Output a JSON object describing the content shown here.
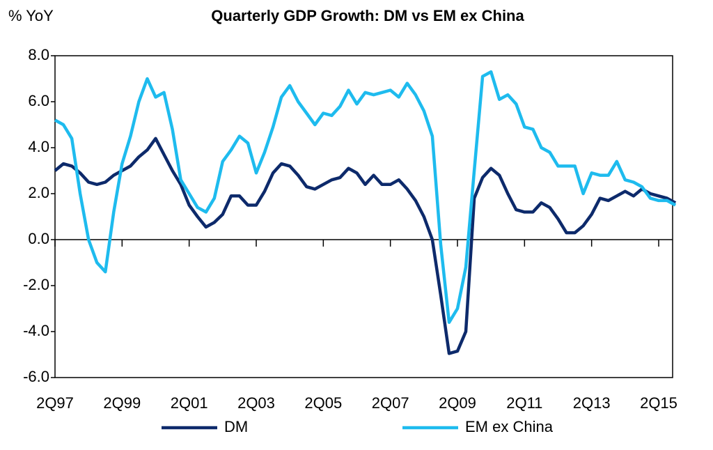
{
  "chart_data": {
    "type": "line",
    "title": "Quarterly GDP Growth: DM vs EM ex China",
    "y_label": "% YoY",
    "categories": [
      "2Q97",
      null,
      null,
      null,
      null,
      null,
      null,
      null,
      "2Q99",
      null,
      null,
      null,
      null,
      null,
      null,
      null,
      "2Q01",
      null,
      null,
      null,
      null,
      null,
      null,
      null,
      "2Q03",
      null,
      null,
      null,
      null,
      null,
      null,
      null,
      "2Q05",
      null,
      null,
      null,
      null,
      null,
      null,
      null,
      "2Q07",
      null,
      null,
      null,
      null,
      null,
      null,
      null,
      "2Q09",
      null,
      null,
      null,
      null,
      null,
      null,
      null,
      "2Q11",
      null,
      null,
      null,
      null,
      null,
      null,
      null,
      "2Q13",
      null,
      null,
      null,
      null,
      null,
      null,
      null,
      "2Q15",
      null,
      null
    ],
    "series": [
      {
        "name": "DM",
        "color": "#0d2a6b",
        "values": [
          3.0,
          3.3,
          3.2,
          2.9,
          2.5,
          2.4,
          2.5,
          2.8,
          3.0,
          3.2,
          3.6,
          3.9,
          4.4,
          3.7,
          3.0,
          2.4,
          1.5,
          1.0,
          0.55,
          0.75,
          1.1,
          1.9,
          1.9,
          1.5,
          1.5,
          2.1,
          2.9,
          3.3,
          3.2,
          2.8,
          2.3,
          2.2,
          2.4,
          2.6,
          2.7,
          3.1,
          2.9,
          2.4,
          2.8,
          2.4,
          2.4,
          2.6,
          2.2,
          1.7,
          1.0,
          0.0,
          -2.4,
          -4.95,
          -4.85,
          -4.0,
          1.8,
          2.7,
          3.1,
          2.8,
          2.0,
          1.3,
          1.2,
          1.2,
          1.6,
          1.4,
          0.9,
          0.3,
          0.3,
          0.6,
          1.1,
          1.8,
          1.7,
          1.9,
          2.1,
          1.9,
          2.2,
          2.0,
          1.9,
          1.8,
          1.6
        ]
      },
      {
        "name": "EM ex China",
        "color": "#1ebbee",
        "values": [
          5.2,
          5.0,
          4.4,
          2.0,
          0.0,
          -1.0,
          -1.4,
          1.2,
          3.3,
          4.5,
          6.0,
          7.0,
          6.2,
          6.4,
          4.8,
          2.6,
          2.0,
          1.4,
          1.2,
          1.8,
          3.4,
          3.9,
          4.5,
          4.2,
          2.9,
          3.8,
          4.9,
          6.2,
          6.7,
          6.0,
          5.5,
          5.0,
          5.5,
          5.4,
          5.8,
          6.5,
          5.9,
          6.4,
          6.3,
          6.4,
          6.5,
          6.2,
          6.8,
          6.3,
          5.6,
          4.5,
          -0.2,
          -3.6,
          -3.0,
          -1.2,
          3.0,
          7.1,
          7.3,
          6.1,
          6.3,
          5.9,
          4.9,
          4.8,
          4.0,
          3.8,
          3.2,
          3.2,
          3.2,
          2.0,
          2.9,
          2.8,
          2.8,
          3.4,
          2.6,
          2.5,
          2.3,
          1.8,
          1.7,
          1.7,
          1.5
        ]
      }
    ],
    "ylim": [
      -6,
      8
    ],
    "yticks": [
      {
        "value": -6,
        "label": "-6.0"
      },
      {
        "value": -4,
        "label": "-4.0"
      },
      {
        "value": -2,
        "label": "-2.0"
      },
      {
        "value": 0,
        "label": "0.0"
      },
      {
        "value": 2,
        "label": "2.0"
      },
      {
        "value": 4,
        "label": "4.0"
      },
      {
        "value": 6,
        "label": "6.0"
      },
      {
        "value": 8,
        "label": "8.0"
      }
    ],
    "legend": "bottom"
  }
}
